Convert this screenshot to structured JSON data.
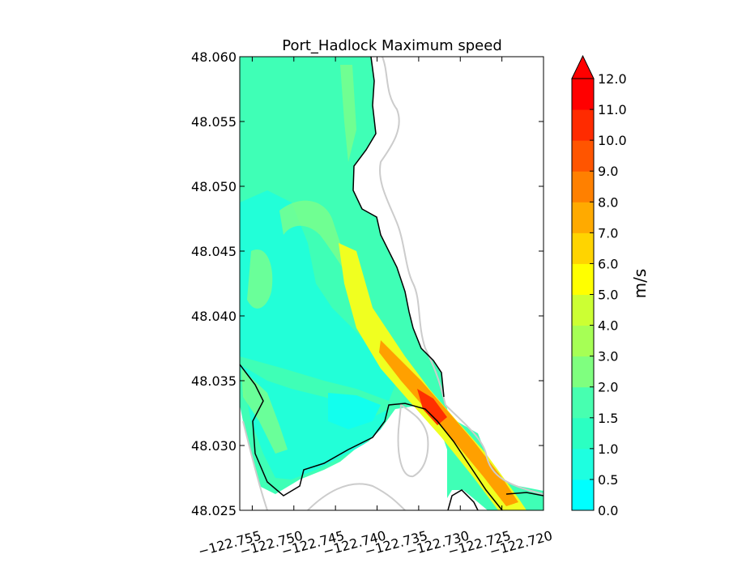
{
  "title": "Port_Hadlock Maximum speed",
  "map": {
    "x_ticks": [
      "−122.755",
      "−122.750",
      "−122.745",
      "−122.740",
      "−122.735",
      "−122.730",
      "−122.725",
      "−122.720"
    ],
    "y_ticks": [
      "48.060",
      "48.055",
      "48.050",
      "48.045",
      "48.040",
      "48.035",
      "48.030",
      "48.025"
    ],
    "lon_range": [
      -122.7565,
      -122.72
    ],
    "lat_range": [
      48.025,
      48.06
    ]
  },
  "colorbar": {
    "label": "m/s",
    "ticks": [
      "0.0",
      "0.5",
      "1.0",
      "1.5",
      "2.0",
      "3.0",
      "4.0",
      "5.0",
      "6.0",
      "7.0",
      "8.0",
      "9.0",
      "10.0",
      "11.0",
      "12.0"
    ],
    "levels": [
      0,
      0.5,
      1,
      1.5,
      2,
      3,
      4,
      5,
      6,
      7,
      8,
      9,
      10,
      11,
      12
    ],
    "colors": [
      "#00ffff",
      "#1effe0",
      "#2bffc2",
      "#47ffb0",
      "#7fff7f",
      "#a6ff55",
      "#ccff33",
      "#ffff00",
      "#ffd400",
      "#ffaa00",
      "#ff8000",
      "#ff5500",
      "#ff2b00",
      "#ff0000"
    ],
    "extend_color": "#ff0000"
  },
  "palette": {
    "background_water": "#3fffb6",
    "low_speed": "#22ffd8",
    "very_low_speed": "#12ffee",
    "medium_speed": "#7dff8a",
    "channel_yellow": "#f0ff20",
    "channel_orange": "#ffa000",
    "channel_red": "#ff3000",
    "shoreline": "#000000",
    "land_contour": "#cccccc"
  }
}
